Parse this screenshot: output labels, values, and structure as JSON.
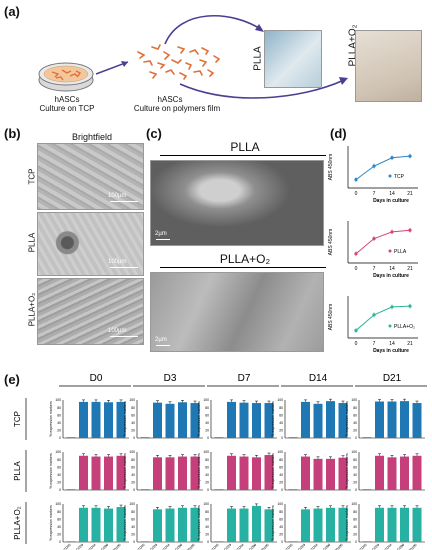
{
  "panel_a": {
    "letter": "(a)",
    "dish_label_1": "hASCs",
    "dish_label_2": "Culture on TCP",
    "cells_label_1": "hASCs",
    "cells_label_2": "Culture on polymers film",
    "film1_label": "PLLA",
    "film2_label": "PLLA+O₂"
  },
  "panel_b": {
    "letter": "(b)",
    "title": "Brightfield",
    "rows": [
      "TCP",
      "PLLA",
      "PLLA+O₂"
    ],
    "scale": "100µm"
  },
  "panel_c": {
    "letter": "(c)",
    "title1": "PLLA",
    "title2": "PLLA+O₂",
    "scale": "2µm"
  },
  "panel_d": {
    "letter": "(d)",
    "ylabel": "ABS 450nm",
    "xlabel": "Days in culture",
    "x_ticks": [
      "0",
      "7",
      "14",
      "21"
    ],
    "charts": [
      {
        "legend": "TCP",
        "color": "#2b86c6",
        "values": [
          0.2,
          0.52,
          0.72,
          0.76
        ]
      },
      {
        "legend": "PLLA",
        "color": "#d7437a",
        "values": [
          0.22,
          0.58,
          0.74,
          0.78
        ]
      },
      {
        "legend": "PLLA+O₂",
        "color": "#2bb59d",
        "values": [
          0.18,
          0.55,
          0.74,
          0.76
        ]
      }
    ]
  },
  "panel_e": {
    "letter": "(e)",
    "days": [
      "D0",
      "D3",
      "D7",
      "D14",
      "D21"
    ],
    "rows": [
      "TCP",
      "PLLA",
      "PLLA+O₂"
    ],
    "row_colors": [
      "#1f78b4",
      "#c5407a",
      "#26b1a3"
    ],
    "ylabel": "% expression markers",
    "y_ticks": [
      "0",
      "20",
      "40",
      "60",
      "80",
      "100"
    ],
    "markers": [
      "CD45",
      "CD29",
      "CD44",
      "CD90",
      "CD105"
    ],
    "chart_data": [
      {
        "type": "bar",
        "row": "TCP",
        "day": "D0",
        "categories": [
          "CD45",
          "CD29",
          "CD44",
          "CD90",
          "CD105"
        ],
        "values": [
          2,
          95,
          95,
          94,
          95
        ],
        "ylim": [
          0,
          100
        ]
      },
      {
        "type": "bar",
        "row": "TCP",
        "day": "D3",
        "categories": [
          "CD45",
          "CD29",
          "CD44",
          "CD90",
          "CD105"
        ],
        "values": [
          2,
          93,
          90,
          94,
          92
        ],
        "ylim": [
          0,
          100
        ]
      },
      {
        "type": "bar",
        "row": "TCP",
        "day": "D7",
        "categories": [
          "CD45",
          "CD29",
          "CD44",
          "CD90",
          "CD105"
        ],
        "values": [
          2,
          95,
          93,
          92,
          92
        ],
        "ylim": [
          0,
          100
        ]
      },
      {
        "type": "bar",
        "row": "TCP",
        "day": "D14",
        "categories": [
          "CD45",
          "CD29",
          "CD44",
          "CD90",
          "CD105"
        ],
        "values": [
          2,
          95,
          90,
          97,
          92
        ],
        "ylim": [
          0,
          100
        ]
      },
      {
        "type": "bar",
        "row": "TCP",
        "day": "D21",
        "categories": [
          "CD45",
          "CD29",
          "CD44",
          "CD90",
          "CD105"
        ],
        "values": [
          2,
          96,
          96,
          97,
          92
        ],
        "ylim": [
          0,
          100
        ]
      },
      {
        "type": "bar",
        "row": "PLLA",
        "day": "D0",
        "categories": [
          "CD45",
          "CD29",
          "CD44",
          "CD90",
          "CD105"
        ],
        "values": [
          2,
          90,
          88,
          88,
          90
        ],
        "ylim": [
          0,
          100
        ]
      },
      {
        "type": "bar",
        "row": "PLLA",
        "day": "D3",
        "categories": [
          "CD45",
          "CD29",
          "CD44",
          "CD90",
          "CD105"
        ],
        "values": [
          2,
          86,
          86,
          88,
          88
        ],
        "ylim": [
          0,
          100
        ]
      },
      {
        "type": "bar",
        "row": "PLLA",
        "day": "D7",
        "categories": [
          "CD45",
          "CD29",
          "CD44",
          "CD90",
          "CD105"
        ],
        "values": [
          2,
          90,
          88,
          86,
          92
        ],
        "ylim": [
          0,
          100
        ]
      },
      {
        "type": "bar",
        "row": "PLLA",
        "day": "D14",
        "categories": [
          "CD45",
          "CD29",
          "CD44",
          "CD90",
          "CD105"
        ],
        "values": [
          2,
          88,
          82,
          82,
          85
        ],
        "ylim": [
          0,
          100
        ]
      },
      {
        "type": "bar",
        "row": "PLLA",
        "day": "D21",
        "categories": [
          "CD45",
          "CD29",
          "CD44",
          "CD90",
          "CD105"
        ],
        "values": [
          2,
          90,
          86,
          88,
          90
        ],
        "ylim": [
          0,
          100
        ]
      },
      {
        "type": "bar",
        "row": "PLLA+O₂",
        "day": "D0",
        "categories": [
          "CD45",
          "CD29",
          "CD44",
          "CD90",
          "CD105"
        ],
        "values": [
          2,
          90,
          90,
          88,
          92
        ],
        "ylim": [
          0,
          100
        ]
      },
      {
        "type": "bar",
        "row": "PLLA+O₂",
        "day": "D3",
        "categories": [
          "CD45",
          "CD29",
          "CD44",
          "CD90",
          "CD105"
        ],
        "values": [
          2,
          86,
          88,
          90,
          90
        ],
        "ylim": [
          0,
          100
        ]
      },
      {
        "type": "bar",
        "row": "PLLA+O₂",
        "day": "D7",
        "categories": [
          "CD45",
          "CD29",
          "CD44",
          "CD90",
          "CD105"
        ],
        "values": [
          2,
          88,
          88,
          95,
          86
        ],
        "ylim": [
          0,
          100
        ]
      },
      {
        "type": "bar",
        "row": "PLLA+O₂",
        "day": "D14",
        "categories": [
          "CD45",
          "CD29",
          "CD44",
          "CD90",
          "CD105"
        ],
        "values": [
          2,
          86,
          88,
          90,
          90
        ],
        "ylim": [
          0,
          100
        ]
      },
      {
        "type": "bar",
        "row": "PLLA+O₂",
        "day": "D21",
        "categories": [
          "CD45",
          "CD29",
          "CD44",
          "CD90",
          "CD105"
        ],
        "values": [
          2,
          90,
          90,
          90,
          90
        ],
        "ylim": [
          0,
          100
        ]
      }
    ]
  }
}
